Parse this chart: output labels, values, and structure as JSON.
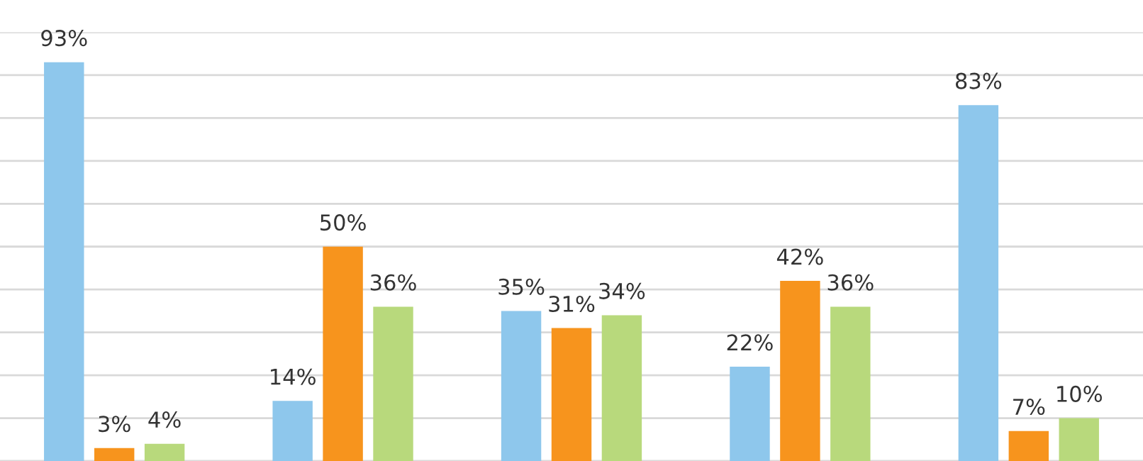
{
  "chart_data": {
    "type": "bar",
    "categories": [
      null,
      null,
      null,
      null,
      null
    ],
    "series": [
      {
        "color": "#8ec7ec",
        "values": [
          93,
          14,
          35,
          22,
          83
        ],
        "value_labels": [
          "93%",
          "14%",
          "35%",
          "22%",
          "83%"
        ]
      },
      {
        "color": "#f7941d",
        "values": [
          3,
          50,
          31,
          42,
          7
        ],
        "value_labels": [
          "3%",
          "50%",
          "31%",
          "42%",
          "7%"
        ]
      },
      {
        "color": "#b8d97c",
        "values": [
          4,
          36,
          34,
          36,
          10
        ],
        "value_labels": [
          "4%",
          "36%",
          "34%",
          "36%",
          "10%"
        ]
      }
    ],
    "ylim": [
      0,
      100
    ],
    "yticks": [
      {
        "value": 0,
        "label": null
      },
      {
        "value": 10,
        "label": null
      },
      {
        "value": 20,
        "label": null
      },
      {
        "value": 30,
        "label": null
      },
      {
        "value": 40,
        "label": null
      },
      {
        "value": 50,
        "label": null
      },
      {
        "value": 60,
        "label": null
      },
      {
        "value": 70,
        "label": null
      },
      {
        "value": 80,
        "label": null
      },
      {
        "value": 90,
        "label": null
      },
      {
        "value": 100,
        "label": null
      }
    ],
    "grid": "y",
    "legend": false
  }
}
